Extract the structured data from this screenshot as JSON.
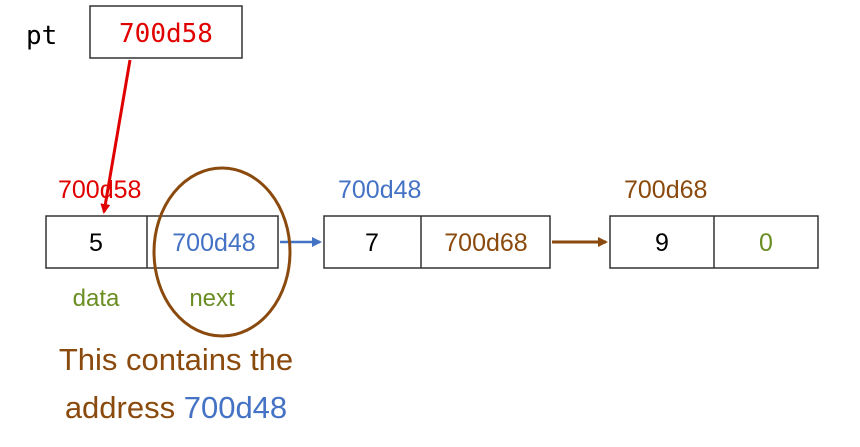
{
  "pointer": {
    "label": "pt",
    "value": "700d58"
  },
  "nodes": [
    {
      "address": "700d58",
      "data": "5",
      "next": "700d48"
    },
    {
      "address": "700d48",
      "data": "7",
      "next": "700d68"
    },
    {
      "address": "700d68",
      "data": "9",
      "next": "0"
    }
  ],
  "field_labels": {
    "data": "data",
    "next": "next"
  },
  "caption": {
    "line1": "This contains the",
    "line2_prefix": "address ",
    "line2_address": "700d48"
  },
  "colors": {
    "red": "#e00000",
    "blue": "#4472c4",
    "brown": "#8b4a0d",
    "green": "#6b8e23",
    "black": "#000000"
  }
}
